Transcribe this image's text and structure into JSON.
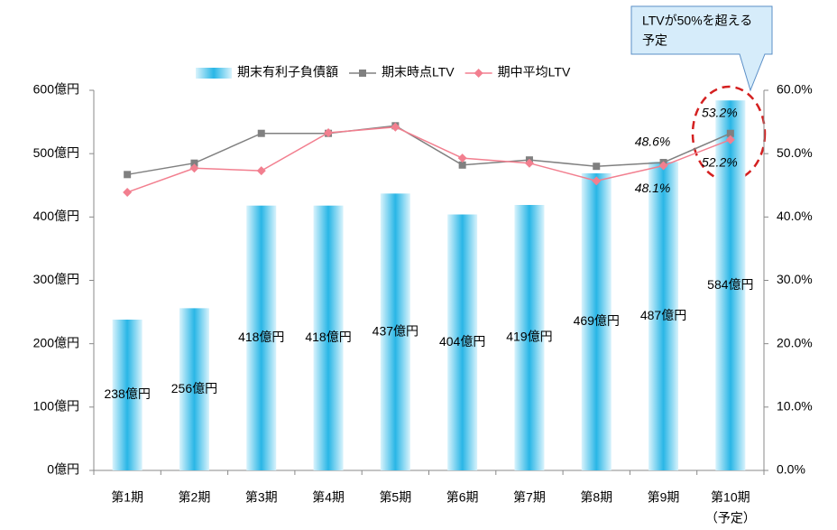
{
  "chart_data": {
    "type": "bar_line",
    "categories": [
      "第1期",
      "第2期",
      "第3期",
      "第4期",
      "第5期",
      "第6期",
      "第7期",
      "第8期",
      "第9期",
      "第10期"
    ],
    "category_note": "（予定）",
    "series": [
      {
        "name": "期末有利子負債額",
        "type": "bar",
        "color": "#29b6e6",
        "values": [
          238,
          256,
          418,
          418,
          437,
          404,
          419,
          469,
          487,
          584
        ],
        "value_labels": [
          "238億円",
          "256億円",
          "418億円",
          "418億円",
          "437億円",
          "404億円",
          "419億円",
          "469億円",
          "487億円",
          "584億円"
        ]
      },
      {
        "name": "期末時点LTV",
        "type": "line",
        "axis": "y2",
        "color": "#808080",
        "marker": "square",
        "values": [
          46.7,
          48.5,
          53.2,
          53.2,
          54.4,
          48.2,
          49.0,
          48.0,
          48.6,
          53.2
        ],
        "value_labels": [
          null,
          null,
          null,
          null,
          null,
          null,
          null,
          null,
          "48.6%",
          "53.2%"
        ]
      },
      {
        "name": "期中平均LTV",
        "type": "line",
        "axis": "y2",
        "color": "#f27f8f",
        "marker": "diamond",
        "values": [
          43.9,
          47.7,
          47.3,
          53.3,
          54.2,
          49.3,
          48.5,
          45.7,
          48.1,
          52.2
        ],
        "value_labels": [
          null,
          null,
          null,
          null,
          null,
          null,
          null,
          null,
          "48.1%",
          "52.2%"
        ]
      }
    ],
    "ylim": [
      0,
      600
    ],
    "yticks": [
      {
        "value": 0,
        "label": "0億円"
      },
      {
        "value": 100,
        "label": "100億円"
      },
      {
        "value": 200,
        "label": "200億円"
      },
      {
        "value": 300,
        "label": "300億円"
      },
      {
        "value": 400,
        "label": "400億円"
      },
      {
        "value": 500,
        "label": "500億円"
      },
      {
        "value": 600,
        "label": "600億円"
      }
    ],
    "y2lim": [
      0,
      60
    ],
    "y2ticks": [
      {
        "value": 0,
        "label": "0.0%"
      },
      {
        "value": 10,
        "label": "10.0%"
      },
      {
        "value": 20,
        "label": "20.0%"
      },
      {
        "value": 30,
        "label": "30.0%"
      },
      {
        "value": 40,
        "label": "40.0%"
      },
      {
        "value": 50,
        "label": "50.0%"
      },
      {
        "value": 60,
        "label": "60.0%"
      }
    ],
    "legend": "top",
    "annotation": {
      "lines": [
        "LTVが50%を超える",
        "予定"
      ]
    }
  }
}
